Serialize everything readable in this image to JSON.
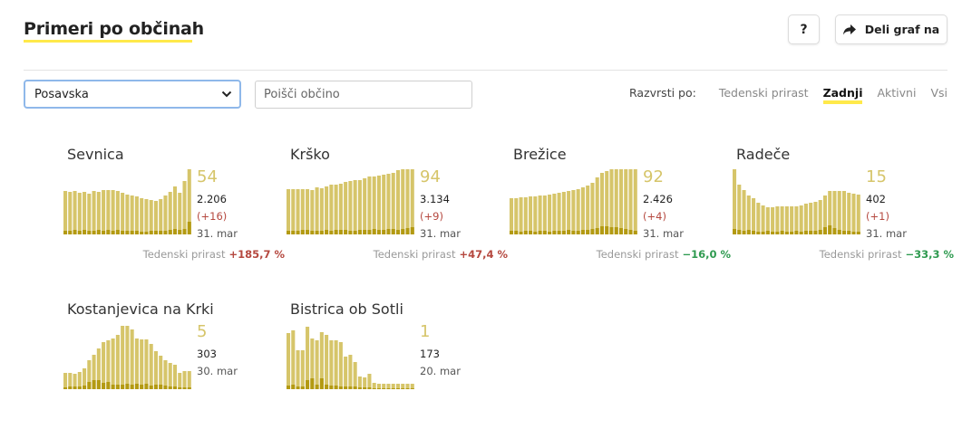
{
  "header": {
    "title": "Primeri po občinah",
    "help_label": "?",
    "share_label": "Deli graf na"
  },
  "filters": {
    "region_selected": "Posavska",
    "search_placeholder": "Poišči občino"
  },
  "sort": {
    "label": "Razvrsti po:",
    "options": [
      "Tedenski prirast",
      "Zadnji",
      "Aktivni",
      "Vsi"
    ],
    "active": "Zadnji"
  },
  "colors": {
    "bar_total": "#d6c56a",
    "bar_new": "#b39a12",
    "accent_underline": "#ffe94a",
    "up": "#b5483f",
    "down": "#2e9a4f"
  },
  "cards": [
    {
      "name": "Sevnica",
      "active": "54",
      "total": "2.206",
      "delta": "(+16)",
      "date": "31. mar",
      "weekly_label": "Tedenski prirast",
      "weekly_value": "+185,7 %",
      "trend": "up",
      "bars": [
        48,
        47,
        48,
        46,
        47,
        45,
        48,
        47,
        49,
        49,
        49,
        48,
        46,
        44,
        43,
        42,
        40,
        39,
        38,
        37,
        39,
        43,
        47,
        53,
        46,
        59,
        77
      ],
      "new_bars": [
        4,
        4,
        5,
        4,
        5,
        4,
        4,
        5,
        4,
        5,
        4,
        5,
        4,
        4,
        4,
        4,
        3,
        3,
        4,
        4,
        4,
        4,
        5,
        6,
        5,
        6,
        14
      ]
    },
    {
      "name": "Krško",
      "active": "94",
      "total": "3.134",
      "delta": "(+9)",
      "date": "31. mar",
      "weekly_label": "Tedenski prirast",
      "weekly_value": "+47,4 %",
      "trend": "up",
      "bars": [
        50,
        50,
        50,
        50,
        50,
        49,
        52,
        51,
        53,
        55,
        55,
        56,
        58,
        59,
        60,
        60,
        62,
        64,
        64,
        65,
        66,
        67,
        68,
        71,
        74,
        77,
        80
      ],
      "new_bars": [
        4,
        4,
        4,
        5,
        5,
        4,
        4,
        4,
        5,
        4,
        5,
        5,
        5,
        4,
        4,
        5,
        5,
        5,
        6,
        5,
        5,
        6,
        6,
        5,
        6,
        7,
        8
      ]
    },
    {
      "name": "Brežice",
      "active": "92",
      "total": "2.426",
      "delta": "(+4)",
      "date": "31. mar",
      "weekly_label": "Tedenski prirast",
      "weekly_value": "−16,0 %",
      "trend": "down",
      "bars": [
        40,
        40,
        41,
        41,
        42,
        42,
        43,
        43,
        44,
        45,
        46,
        47,
        48,
        49,
        50,
        52,
        54,
        57,
        63,
        68,
        70,
        73,
        76,
        78,
        79,
        79,
        77
      ],
      "new_bars": [
        4,
        4,
        3,
        4,
        4,
        3,
        4,
        4,
        3,
        4,
        4,
        4,
        5,
        4,
        4,
        5,
        5,
        6,
        7,
        9,
        9,
        8,
        8,
        7,
        6,
        5,
        4
      ]
    },
    {
      "name": "Radeče",
      "active": "15",
      "total": "402",
      "delta": "(+1)",
      "date": "31. mar",
      "weekly_label": "Tedenski prirast",
      "weekly_value": "−33,3 %",
      "trend": "down",
      "bars": [
        73,
        55,
        49,
        43,
        40,
        35,
        32,
        30,
        30,
        31,
        31,
        31,
        31,
        31,
        32,
        34,
        35,
        36,
        38,
        43,
        48,
        48,
        48,
        48,
        46,
        45,
        44
      ],
      "new_bars": [
        6,
        5,
        4,
        5,
        4,
        3,
        3,
        4,
        3,
        3,
        4,
        3,
        3,
        4,
        3,
        4,
        4,
        4,
        5,
        8,
        10,
        7,
        5,
        4,
        4,
        3,
        3
      ]
    },
    {
      "name": "Kostanjevica na Krki",
      "active": "5",
      "total": "303",
      "delta": "",
      "date": "30. mar",
      "weekly_label": "",
      "weekly_value": "",
      "trend": "",
      "bars": [
        18,
        18,
        17,
        19,
        23,
        32,
        38,
        45,
        52,
        54,
        56,
        60,
        70,
        70,
        66,
        56,
        55,
        55,
        50,
        42,
        37,
        32,
        29,
        27,
        18,
        20,
        20
      ],
      "new_bars": [
        2,
        3,
        3,
        3,
        4,
        8,
        10,
        10,
        7,
        8,
        5,
        5,
        5,
        6,
        5,
        6,
        5,
        6,
        4,
        5,
        5,
        4,
        3,
        3,
        2,
        2,
        2
      ]
    },
    {
      "name": "Bistrica ob Sotli",
      "active": "1",
      "total": "173",
      "delta": "",
      "date": "20. mar",
      "weekly_label": "",
      "weekly_value": "",
      "trend": "",
      "bars": [
        62,
        65,
        43,
        43,
        69,
        56,
        54,
        63,
        60,
        54,
        54,
        52,
        36,
        38,
        30,
        14,
        13,
        17,
        7,
        6,
        6,
        6,
        6,
        6,
        6,
        6,
        6
      ],
      "new_bars": [
        4,
        5,
        3,
        3,
        10,
        12,
        5,
        12,
        5,
        4,
        4,
        3,
        3,
        3,
        3,
        2,
        2,
        2,
        1,
        1,
        1,
        1,
        1,
        1,
        1,
        1,
        1
      ]
    }
  ]
}
